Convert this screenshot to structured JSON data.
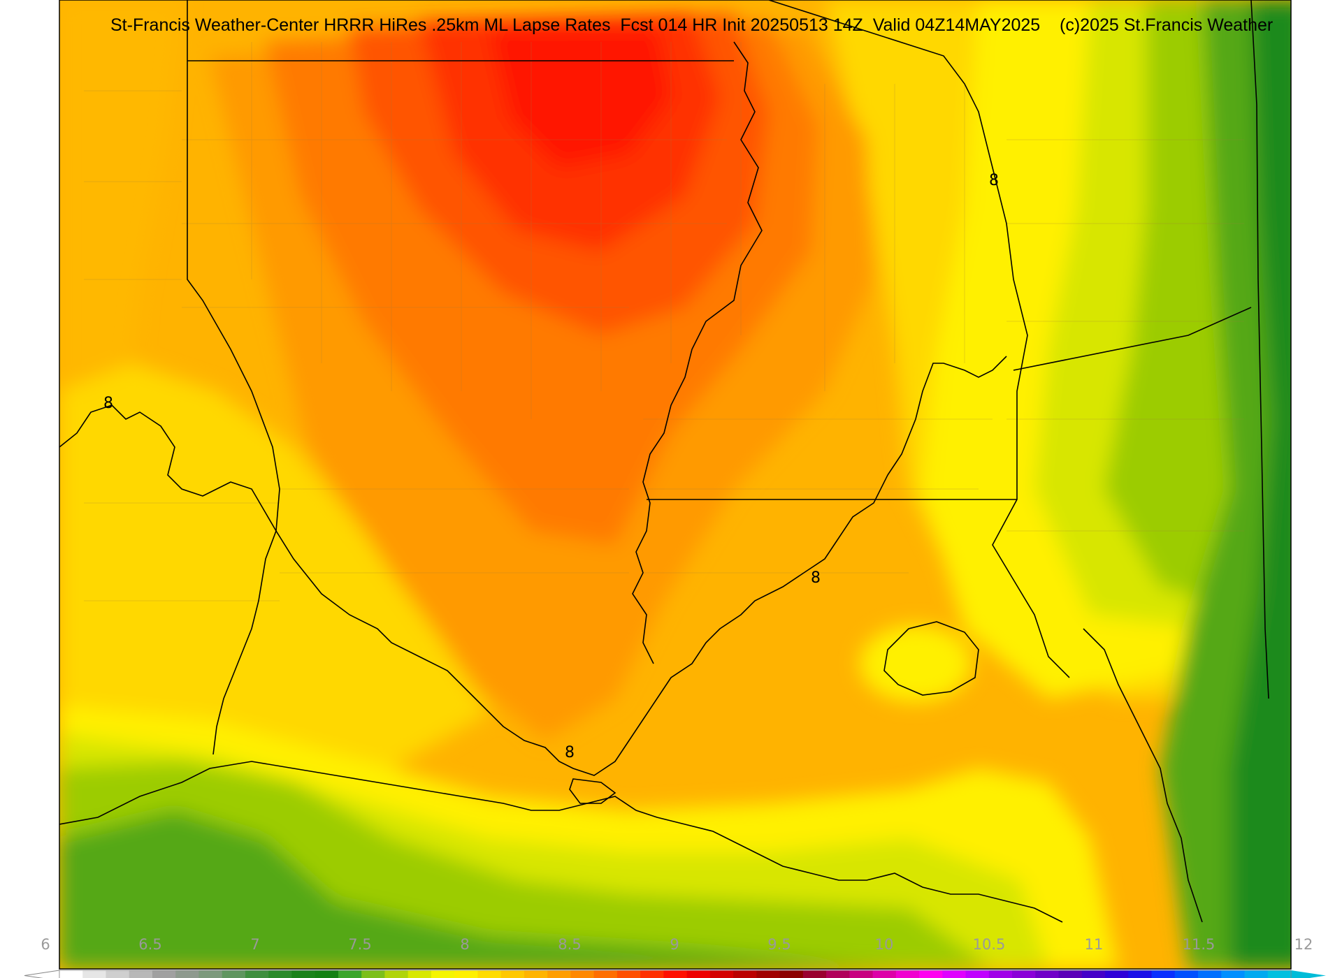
{
  "title": {
    "main": "St-Francis Weather-Center HRRR HiRes .25km ML Lapse Rates  Fcst 014 HR Init 20250513 14Z  Valid 04Z14MAY2025",
    "credit": "(c)2025 St.Francis Weather"
  },
  "contour_labels": [
    "8",
    "8",
    "8",
    "8"
  ],
  "colorbar": {
    "ticks": [
      "6",
      "6.5",
      "7",
      "7.5",
      "8",
      "8.5",
      "9",
      "9.5",
      "10",
      "10.5",
      "11",
      "11.5",
      "12"
    ],
    "colors": [
      "#ffffff",
      "#e6e6e6",
      "#cfcfcf",
      "#b8b8b8",
      "#a0a0a0",
      "#8e9a8e",
      "#7c9a7c",
      "#5f955f",
      "#3f8f3f",
      "#2a8a2a",
      "#1a821a",
      "#138013",
      "#3aa52a",
      "#7cbf1a",
      "#b0d40a",
      "#d8e800",
      "#f5f500",
      "#fff000",
      "#ffdc00",
      "#ffc800",
      "#ffb400",
      "#ff9e00",
      "#ff8800",
      "#ff6e00",
      "#ff5000",
      "#ff3000",
      "#ff1000",
      "#ee0000",
      "#d40000",
      "#bb0000",
      "#a00000",
      "#8c0000",
      "#9a0030",
      "#b0005a",
      "#c80080",
      "#dd00a8",
      "#f000d0",
      "#ff00f0",
      "#e000ff",
      "#c000ff",
      "#a000e8",
      "#8a00d8",
      "#7000c8",
      "#5a00b8",
      "#4400c8",
      "#2e00d8",
      "#1a10e8",
      "#0a30ff",
      "#0050ff",
      "#0070ff",
      "#0090ff",
      "#00aaf0",
      "#00c0e0"
    ]
  },
  "map_colors": {
    "red": "#ff1a00",
    "orange_red": "#ff4400",
    "orange": "#ff7a00",
    "amber": "#ffa000",
    "gold": "#ffcc00",
    "yellow": "#fff200",
    "yellow_green": "#c8e000",
    "light_green": "#8ecb00",
    "green": "#4faa10",
    "dark_green": "#208a18"
  }
}
